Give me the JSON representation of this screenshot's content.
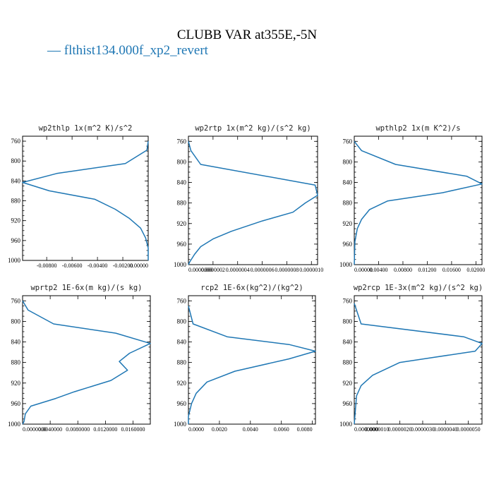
{
  "figure": {
    "title": "CLUBB VAR at355E,-5N",
    "legend": "— flthist134.000f_xp2_revert",
    "series_color": "#1f77b4"
  },
  "chart_data": [
    {
      "type": "line",
      "title": "wp2thlp   1x(m^2 K)/s^2",
      "xlim": [
        -0.0099,
        0.0
      ],
      "ylim": [
        1000,
        750
      ],
      "xticks": [
        -0.008,
        -0.006,
        -0.004,
        -0.002,
        0.0
      ],
      "xtick_labels": [
        "-0.00800",
        "-0.00600",
        "-0.00400",
        "-0.00200",
        "0.00000"
      ],
      "yticks": [
        760,
        800,
        840,
        880,
        920,
        960,
        1000
      ],
      "series": [
        {
          "x": [
            0.0,
            -0.0001,
            -0.0018,
            -0.0072,
            -0.0099,
            -0.0078,
            -0.0042,
            -0.0026,
            -0.0015,
            -0.0006,
            -0.0002,
            0.0,
            0.0
          ],
          "y": [
            760,
            778,
            805,
            825,
            843,
            860,
            877,
            897,
            915,
            935,
            955,
            975,
            1000
          ]
        }
      ]
    },
    {
      "type": "line",
      "title": "wp2rtp   1x(m^2 kg)/(s^2 kg)",
      "xlim": [
        0.0,
        1.05e-06
      ],
      "ylim": [
        1000,
        750
      ],
      "xticks": [
        0.0,
        2e-07,
        4e-07,
        6e-07,
        8e-07,
        1e-06
      ],
      "xtick_labels": [
        "0.0000000",
        "0.0000002",
        "0.0000004",
        "0.0000006",
        "0.0000008",
        "0.0000010"
      ],
      "yticks": [
        760,
        800,
        840,
        880,
        920,
        960,
        1000
      ],
      "series": [
        {
          "x": [
            0.0,
            2e-08,
            1e-07,
            1.03e-06,
            1.05e-06,
            9.5e-07,
            8.5e-07,
            6e-07,
            3.5e-07,
            2e-07,
            1e-07,
            5e-08,
            1e-08,
            0.0
          ],
          "y": [
            760,
            778,
            805,
            845,
            865,
            880,
            898,
            915,
            935,
            950,
            965,
            980,
            995,
            1000
          ]
        }
      ]
    },
    {
      "type": "line",
      "title": "wpthlp2   1x(m K^2)/s",
      "xlim": [
        0.0,
        0.021
      ],
      "ylim": [
        1000,
        750
      ],
      "xticks": [
        0.0,
        0.004,
        0.008,
        0.012,
        0.016,
        0.02
      ],
      "xtick_labels": [
        "0.00000",
        "0.00400",
        "0.00800",
        "0.01200",
        "0.01600",
        "0.02000"
      ],
      "yticks": [
        760,
        800,
        840,
        880,
        920,
        960,
        1000
      ],
      "series": [
        {
          "x": [
            0.0,
            0.0012,
            0.0068,
            0.0185,
            0.021,
            0.0145,
            0.0055,
            0.0025,
            0.0012,
            0.0005,
            0.0001,
            0.0
          ],
          "y": [
            760,
            778,
            805,
            828,
            843,
            860,
            876,
            893,
            912,
            930,
            955,
            1000
          ]
        }
      ]
    },
    {
      "type": "line",
      "title": "wprtp2   1E-6x(m kg)/(s kg)",
      "xlim": [
        0.0,
        0.0185
      ],
      "ylim": [
        1000,
        750
      ],
      "xticks": [
        0.0,
        0.004,
        0.008,
        0.012,
        0.016
      ],
      "xtick_labels": [
        "0.0000000",
        "0.0040000",
        "0.0080000",
        "0.0120000",
        "0.0160000"
      ],
      "yticks": [
        760,
        800,
        840,
        880,
        920,
        960,
        1000
      ],
      "series": [
        {
          "x": [
            0.0,
            0.0008,
            0.0045,
            0.0135,
            0.0185,
            0.0155,
            0.014,
            0.0152,
            0.0128,
            0.0075,
            0.0048,
            0.0012,
            0.0004,
            0.0002,
            0.0
          ],
          "y": [
            760,
            778,
            805,
            823,
            843,
            862,
            878,
            895,
            915,
            937,
            950,
            965,
            980,
            995,
            1000
          ]
        }
      ]
    },
    {
      "type": "line",
      "title": "rcp2   1E-6x(kg^2)/(kg^2)",
      "xlim": [
        0.0,
        0.0082
      ],
      "ylim": [
        1000,
        750
      ],
      "xticks": [
        0.0,
        0.002,
        0.004,
        0.006,
        0.008
      ],
      "xtick_labels": [
        "0.0000",
        "0.0020",
        "0.0040",
        "0.0060",
        "0.0080"
      ],
      "yticks": [
        760,
        800,
        840,
        880,
        920,
        960,
        1000
      ],
      "series": [
        {
          "x": [
            0.0,
            0.0003,
            0.0025,
            0.0065,
            0.0082,
            0.0065,
            0.003,
            0.0012,
            0.0005,
            0.0002,
            0.0,
            0.0
          ],
          "y": [
            770,
            805,
            830,
            845,
            858,
            873,
            897,
            918,
            940,
            960,
            985,
            1000
          ]
        }
      ]
    },
    {
      "type": "line",
      "title": "wp2rcp   1E-3x(m^2 kg)/(s^2 kg)",
      "xlim": [
        0.0,
        5.6e-06
      ],
      "ylim": [
        1000,
        750
      ],
      "xticks": [
        0.0,
        1e-06,
        2e-06,
        3e-06,
        4e-06,
        5e-06
      ],
      "xtick_labels": [
        "0.0000000",
        "0.0000010",
        "0.0000020",
        "0.0000030",
        "0.0000040",
        "0.0000050"
      ],
      "yticks": [
        760,
        800,
        840,
        880,
        920,
        960,
        1000
      ],
      "series": [
        {
          "x": [
            0.0,
            3e-07,
            4.8e-06,
            5.6e-06,
            5.3e-06,
            2e-06,
            8e-07,
            3e-07,
            1e-07,
            0.0
          ],
          "y": [
            765,
            805,
            830,
            843,
            858,
            880,
            905,
            925,
            945,
            1000
          ]
        }
      ]
    }
  ]
}
